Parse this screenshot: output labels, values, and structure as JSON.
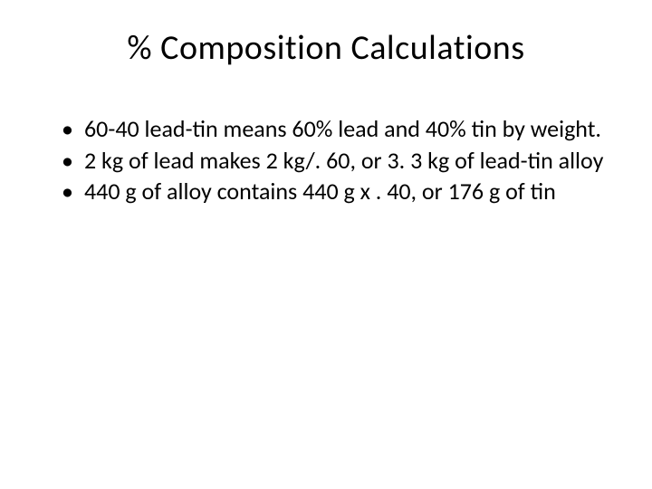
{
  "slide": {
    "title": "% Composition Calculations",
    "title_fontsize": 38,
    "title_color": "#000000",
    "body_fontsize": 26,
    "body_color": "#000000",
    "background_color": "#ffffff",
    "bullets": [
      "60-40 lead-tin means 60% lead and 40% tin by weight.",
      "2 kg of lead makes 2 kg/. 60, or 3. 3 kg of lead-tin alloy",
      "440 g of alloy contains 440 g x . 40, or 176 g of tin"
    ]
  }
}
